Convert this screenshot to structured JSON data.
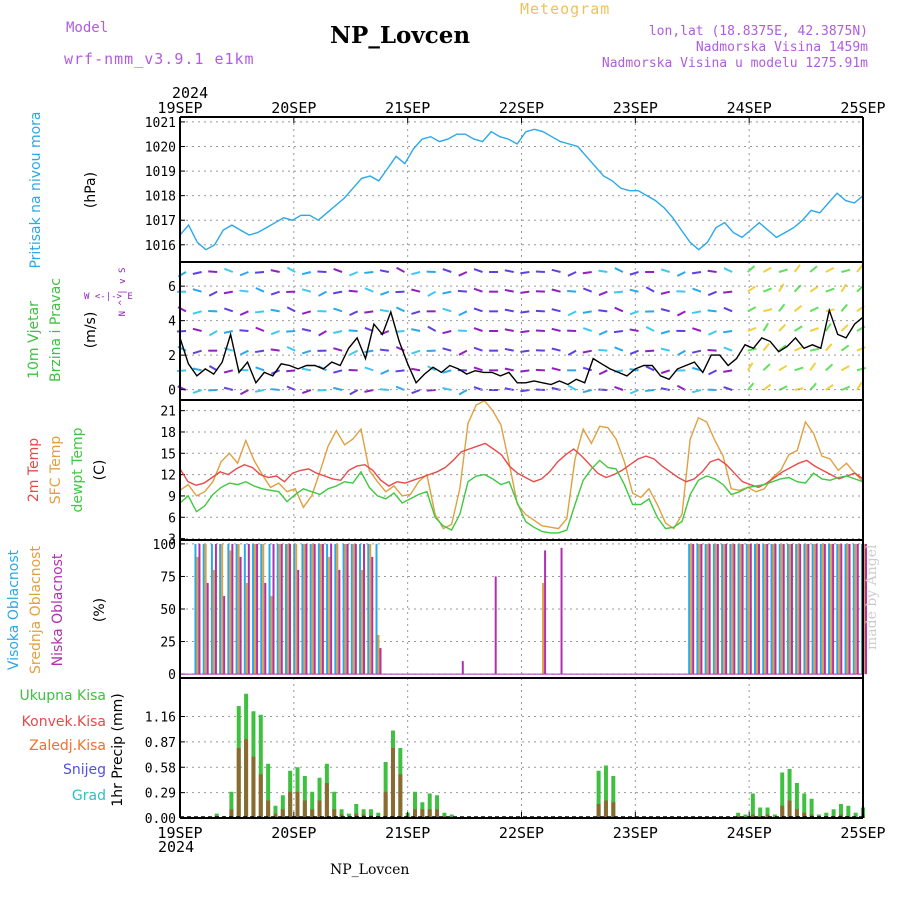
{
  "header": {
    "model_label": "Model",
    "model_name": "wrf-nmm_v3.9.1 e1km",
    "station": "NP_Lovcen",
    "meteogram_label": "Meteogram",
    "lonlat": "lon,lat (18.8375E, 42.3875N)",
    "altitude": "Nadmorska Visina 1459m",
    "model_altitude": "Nadmorska Visina u modelu 1275.91m"
  },
  "year_top": "2024",
  "year_bottom": "2024",
  "footer_station": "NP_Lovcen",
  "watermark": "made by Angel",
  "colors": {
    "pressure": "#2aa8e8",
    "temp2m": "#e84a4a",
    "sfc_temp": "#e0a040",
    "dewpoint": "#40c840",
    "high_cloud": "#2aa8e8",
    "mid_cloud": "#e0a040",
    "low_cloud": "#b030b0",
    "total_precip": "#40c040",
    "conv_precip": "#e84a4a",
    "freezing": "#f07030",
    "snow": "#5050e0",
    "hail": "#30c0c0",
    "wind_purple": "#9020c0"
  },
  "chart_data": [
    {
      "type": "line",
      "name": "pressure",
      "x_ticks": [
        "19SEP",
        "20SEP",
        "21SEP",
        "22SEP",
        "23SEP",
        "24SEP",
        "25SEP"
      ],
      "ylabel_main": "Pritisak na nivou mora",
      "ylabel_unit": "(hPa)",
      "ylim": [
        1015.3,
        1021.2
      ],
      "yticks": [
        1016,
        1017,
        1018,
        1019,
        1020,
        1021
      ],
      "grid": true,
      "series": [
        {
          "name": "Pritisak na nivou mora",
          "values": [
            1016.4,
            1016.8,
            1016.1,
            1015.8,
            1016.0,
            1016.6,
            1016.8,
            1016.6,
            1016.4,
            1016.5,
            1016.7,
            1016.9,
            1017.1,
            1017.0,
            1017.2,
            1017.2,
            1017.0,
            1017.3,
            1017.6,
            1017.9,
            1018.3,
            1018.7,
            1018.8,
            1018.6,
            1019.1,
            1019.6,
            1019.3,
            1019.9,
            1020.3,
            1020.4,
            1020.2,
            1020.3,
            1020.5,
            1020.5,
            1020.3,
            1020.2,
            1020.6,
            1020.4,
            1020.3,
            1020.1,
            1020.6,
            1020.7,
            1020.6,
            1020.4,
            1020.2,
            1020.1,
            1020.0,
            1019.6,
            1019.2,
            1018.8,
            1018.6,
            1018.3,
            1018.2,
            1018.2,
            1018.0,
            1017.8,
            1017.5,
            1017.1,
            1016.6,
            1016.1,
            1015.8,
            1016.1,
            1016.7,
            1016.9,
            1016.5,
            1016.3,
            1016.6,
            1016.9,
            1016.6,
            1016.3,
            1016.5,
            1016.7,
            1017.0,
            1017.4,
            1017.3,
            1017.7,
            1018.1,
            1017.8,
            1017.7,
            1018.0
          ]
        }
      ]
    },
    {
      "type": "line",
      "name": "wind",
      "ylabel_main": "10m Vjetar",
      "ylabel_sub": "Brzina i Pravac",
      "ylabel_unit": "(m/s)",
      "legend_compass": "W  <-|->  E",
      "legend_compass_ns": "N ^ | v S",
      "ylim": [
        -0.6,
        7.4
      ],
      "yticks": [
        0,
        2,
        4,
        6
      ],
      "series": [
        {
          "name": "Brzina",
          "values": [
            3.0,
            1.5,
            0.8,
            1.2,
            0.9,
            1.6,
            3.2,
            1.0,
            1.6,
            0.4,
            1.0,
            0.8,
            1.5,
            1.4,
            1.2,
            1.4,
            1.4,
            1.2,
            1.6,
            1.4,
            2.4,
            3.0,
            1.8,
            3.8,
            3.2,
            4.5,
            2.8,
            1.5,
            0.4,
            0.9,
            1.3,
            1.0,
            1.4,
            1.2,
            0.9,
            1.1,
            1.0,
            1.0,
            0.8,
            1.0,
            0.4,
            0.4,
            0.5,
            0.4,
            0.3,
            0.5,
            0.3,
            0.6,
            0.4,
            1.8,
            1.5,
            1.2,
            1.0,
            0.8,
            1.2,
            1.4,
            1.4,
            0.8,
            0.6,
            1.2,
            1.4,
            1.6,
            1.0,
            2.0,
            2.0,
            1.4,
            1.8,
            2.6,
            2.4,
            3.0,
            2.8,
            2.2,
            2.5,
            3.0,
            2.4,
            2.6,
            2.4,
            4.6,
            3.2,
            3.0,
            3.8,
            4.2
          ]
        }
      ]
    },
    {
      "type": "line",
      "name": "temperature",
      "ylabel_main": "2m Temp",
      "ylabel_sub": "SFC Temp",
      "ylabel_sub2": "dewpt Temp",
      "ylabel_unit": "(C)",
      "ylim": [
        2.8,
        22.5
      ],
      "yticks": [
        3,
        6,
        9,
        12,
        15,
        18,
        21
      ],
      "series": [
        {
          "name": "2m Temp",
          "values": [
            12.8,
            11.0,
            10.5,
            10.8,
            11.6,
            12.4,
            12.0,
            12.8,
            13.4,
            13.0,
            12.0,
            11.6,
            11.8,
            11.0,
            12.2,
            12.6,
            12.8,
            12.2,
            11.8,
            11.4,
            11.2,
            12.6,
            13.2,
            13.4,
            12.6,
            11.2,
            10.4,
            11.0,
            10.8,
            11.2,
            11.6,
            12.0,
            12.4,
            13.0,
            14.0,
            15.2,
            15.6,
            16.0,
            16.4,
            15.6,
            14.8,
            13.2,
            12.2,
            11.6,
            11.0,
            11.4,
            12.4,
            13.8,
            14.8,
            15.6,
            14.6,
            13.4,
            12.2,
            11.6,
            12.0,
            12.6,
            13.4,
            14.2,
            14.6,
            14.2,
            13.2,
            12.4,
            11.6,
            11.0,
            11.4,
            12.4,
            13.8,
            14.2,
            13.4,
            12.2,
            11.0,
            10.6,
            10.2,
            10.8,
            11.6,
            12.4,
            13.0,
            13.6,
            14.0,
            13.2,
            12.6,
            12.0,
            11.4,
            11.8,
            12.2,
            11.4
          ]
        },
        {
          "name": "SFC Temp",
          "values": [
            9.8,
            10.6,
            9.0,
            9.6,
            11.0,
            13.8,
            15.0,
            13.6,
            16.8,
            14.0,
            12.0,
            10.2,
            10.8,
            9.6,
            10.0,
            7.4,
            9.0,
            12.4,
            16.0,
            18.2,
            16.2,
            17.0,
            18.4,
            12.6,
            11.0,
            9.6,
            10.4,
            9.0,
            9.2,
            11.0,
            12.0,
            6.4,
            4.4,
            5.0,
            10.0,
            19.2,
            21.8,
            22.4,
            21.0,
            19.0,
            13.6,
            7.8,
            6.4,
            5.6,
            4.8,
            4.6,
            4.4,
            5.8,
            14.2,
            18.4,
            16.4,
            18.8,
            18.6,
            17.0,
            13.8,
            9.4,
            8.8,
            10.0,
            7.8,
            5.2,
            4.4,
            6.4,
            17.0,
            20.0,
            19.4,
            16.8,
            14.6,
            10.0,
            9.8,
            10.2,
            9.6,
            10.0,
            11.6,
            12.6,
            14.8,
            15.4,
            19.4,
            17.8,
            14.6,
            14.2,
            12.6,
            13.6,
            12.2,
            11.0
          ]
        },
        {
          "name": "dewpt Temp",
          "values": [
            8.0,
            9.0,
            6.8,
            7.6,
            9.2,
            10.2,
            10.8,
            10.6,
            11.0,
            10.4,
            10.0,
            9.8,
            9.6,
            8.2,
            9.2,
            10.0,
            9.6,
            9.2,
            10.0,
            10.4,
            11.0,
            10.8,
            12.4,
            10.2,
            9.0,
            8.6,
            9.4,
            8.0,
            8.6,
            9.2,
            9.6,
            6.0,
            4.8,
            4.2,
            6.4,
            11.0,
            11.8,
            12.0,
            11.4,
            10.6,
            11.0,
            8.0,
            5.4,
            4.6,
            4.0,
            3.8,
            3.8,
            4.2,
            7.8,
            11.2,
            12.8,
            14.0,
            13.0,
            12.8,
            10.6,
            7.8,
            7.8,
            8.6,
            6.0,
            4.4,
            4.6,
            5.4,
            9.2,
            11.2,
            11.8,
            11.4,
            10.6,
            9.2,
            9.6,
            10.2,
            10.4,
            10.6,
            11.0,
            11.4,
            11.6,
            11.0,
            10.8,
            12.2,
            11.4,
            11.2,
            11.6,
            11.8,
            11.4,
            11.0
          ]
        }
      ]
    },
    {
      "type": "bar",
      "name": "cloud",
      "ylabel_main": "Visoka Oblacnost",
      "ylabel_sub": "Srednja Oblacnost",
      "ylabel_sub2": "Niska Oblacnost",
      "ylabel_unit": "(%)",
      "ylim": [
        -3,
        103
      ],
      "yticks": [
        0,
        25,
        50,
        75,
        100
      ],
      "series": [
        {
          "name": "Visoka Oblacnost",
          "values": [
            0,
            0,
            100,
            100,
            100,
            100,
            100,
            100,
            100,
            100,
            100,
            100,
            100,
            100,
            100,
            100,
            100,
            100,
            100,
            100,
            100,
            100,
            100,
            100,
            100,
            0,
            0,
            0,
            0,
            0,
            0,
            0,
            0,
            0,
            0,
            0,
            0,
            0,
            0,
            0,
            0,
            0,
            0,
            0,
            0,
            0,
            0,
            0,
            0,
            0,
            0,
            0,
            0,
            0,
            0,
            0,
            0,
            0,
            0,
            0,
            0,
            0,
            100,
            100,
            100,
            100,
            100,
            100,
            100,
            100,
            100,
            100,
            100,
            100,
            100,
            100,
            100,
            100,
            100,
            100,
            100,
            100,
            100,
            100
          ]
        },
        {
          "name": "Srednja Oblacnost",
          "values": [
            0,
            0,
            90,
            100,
            80,
            100,
            95,
            100,
            70,
            100,
            100,
            60,
            100,
            100,
            100,
            100,
            100,
            100,
            90,
            100,
            100,
            100,
            80,
            100,
            30,
            0,
            0,
            0,
            0,
            0,
            0,
            0,
            0,
            0,
            0,
            0,
            0,
            0,
            0,
            0,
            0,
            0,
            0,
            0,
            70,
            0,
            0,
            0,
            0,
            0,
            0,
            0,
            0,
            0,
            0,
            0,
            0,
            0,
            0,
            0,
            0,
            0,
            100,
            100,
            100,
            100,
            100,
            100,
            100,
            100,
            100,
            100,
            100,
            100,
            100,
            100,
            100,
            100,
            100,
            100,
            100,
            100,
            100,
            100
          ]
        },
        {
          "name": "Niska Oblacnost",
          "values": [
            0,
            0,
            100,
            70,
            100,
            60,
            100,
            90,
            100,
            100,
            70,
            100,
            100,
            100,
            80,
            100,
            100,
            100,
            100,
            80,
            100,
            100,
            100,
            90,
            20,
            0,
            0,
            0,
            0,
            0,
            0,
            0,
            0,
            0,
            10,
            0,
            0,
            0,
            75,
            0,
            0,
            0,
            0,
            0,
            95,
            0,
            97,
            0,
            0,
            0,
            0,
            0,
            0,
            0,
            0,
            0,
            0,
            0,
            0,
            0,
            0,
            0,
            100,
            100,
            100,
            100,
            100,
            100,
            100,
            100,
            100,
            100,
            100,
            100,
            100,
            100,
            100,
            100,
            100,
            100,
            100,
            100,
            100,
            100
          ]
        }
      ]
    },
    {
      "type": "bar",
      "name": "precip",
      "ylabel_main": "1hr Precip (mm)",
      "legend": [
        "Ukupna Kisa",
        "Konvek.Kisa",
        "Zaledj.Kisa",
        "Snijeg",
        "Grad"
      ],
      "ylim": [
        0,
        1.6
      ],
      "yticks": [
        0,
        0.29,
        0.58,
        0.87,
        1.16
      ],
      "series": [
        {
          "name": "Ukupna Kisa",
          "values": [
            0,
            0,
            0,
            0,
            0,
            0.05,
            0.02,
            0.3,
            1.28,
            1.42,
            1.22,
            1.18,
            0.62,
            0.14,
            0.26,
            0.54,
            0.58,
            0.48,
            0.3,
            0.46,
            0.62,
            0.3,
            0.1,
            0.05,
            0.16,
            0.1,
            0.1,
            0.06,
            0.64,
            1.0,
            0.8,
            0.06,
            0.3,
            0.18,
            0.28,
            0.26,
            0.06,
            0.04,
            0,
            0,
            0,
            0,
            0,
            0,
            0,
            0,
            0,
            0,
            0,
            0,
            0,
            0,
            0,
            0,
            0,
            0,
            0,
            0.54,
            0.6,
            0.48,
            0,
            0,
            0,
            0,
            0,
            0,
            0,
            0,
            0,
            0,
            0,
            0,
            0,
            0,
            0,
            0,
            0.06,
            0.04,
            0.28,
            0.12,
            0.12,
            0.04,
            0.52,
            0.56,
            0.4,
            0.28,
            0.22,
            0.04,
            0.06,
            0.1,
            0.16,
            0.14,
            0.06,
            0.12
          ]
        },
        {
          "name": "Konvek.Kisa",
          "values": [
            0,
            0,
            0,
            0,
            0,
            0.02,
            0,
            0.1,
            0.8,
            0.9,
            0.7,
            0.5,
            0.2,
            0.05,
            0.1,
            0.3,
            0.3,
            0.2,
            0.1,
            0.2,
            0.4,
            0.1,
            0.04,
            0,
            0.05,
            0.04,
            0.03,
            0.02,
            0.3,
            0.8,
            0.5,
            0.02,
            0.1,
            0.1,
            0.1,
            0.1,
            0.02,
            0,
            0,
            0,
            0,
            0,
            0,
            0,
            0,
            0,
            0,
            0,
            0,
            0,
            0,
            0,
            0,
            0,
            0,
            0,
            0,
            0.16,
            0.2,
            0.18,
            0,
            0,
            0,
            0,
            0,
            0,
            0,
            0,
            0,
            0,
            0,
            0,
            0,
            0,
            0,
            0,
            0.02,
            0,
            0.04,
            0.02,
            0.04,
            0,
            0.14,
            0.2,
            0.1,
            0.06,
            0.04,
            0,
            0.02,
            0.02,
            0.04,
            0.02,
            0,
            0.03
          ]
        }
      ]
    }
  ],
  "x_ticks_bottom": [
    "19SEP",
    "20SEP",
    "21SEP",
    "22SEP",
    "23SEP",
    "24SEP",
    "25SEP"
  ]
}
